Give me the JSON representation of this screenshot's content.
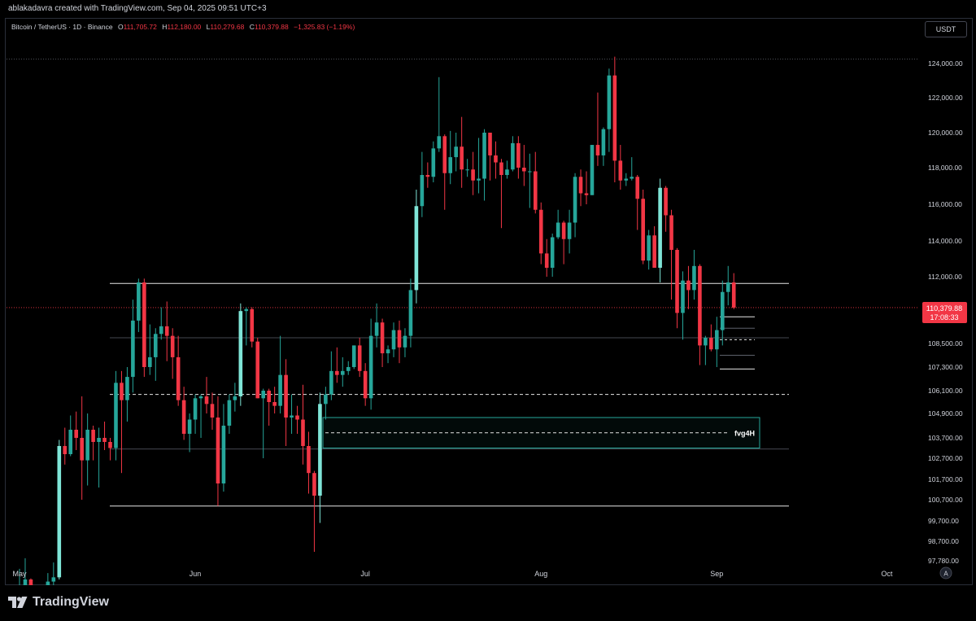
{
  "header": {
    "credit": "ablakadavra created with TradingView.com, Sep 04, 2025 09:51 UTC+3"
  },
  "legend": {
    "symbol": "Bitcoin / TetherUS · 1D · Binance",
    "open_label": "O",
    "open": "111,705.72",
    "high_label": "H",
    "high": "112,180.00",
    "low_label": "L",
    "low": "110,279.68",
    "close_label": "C",
    "close": "110,379.88",
    "change": "−1,325.83 (−1.19%)"
  },
  "currency_button": "USDT",
  "auto_button": "A",
  "logo": "TradingView",
  "price_tag": {
    "price": "110,379.88",
    "countdown": "17:08:33"
  },
  "colors": {
    "up": "#26a69a",
    "up_bright": "#7fe5d7",
    "down": "#f23645",
    "background": "#000000",
    "axis_text": "#d1d4dc",
    "line": "#e6e6e6",
    "zone": "#26a69a"
  },
  "chart_data": {
    "type": "candlestick",
    "x_axis_labels": [
      "May",
      "Jun",
      "Jul",
      "Aug",
      "Sep",
      "Oct"
    ],
    "y_axis_labels": [
      "124,000.00",
      "122,000.00",
      "120,000.00",
      "118,000.00",
      "116,000.00",
      "114,000.00",
      "112,000.00",
      "108,500.00",
      "107,300.00",
      "106,100.00",
      "104,900.00",
      "103,700.00",
      "102,700.00",
      "101,700.00",
      "100,700.00",
      "99,700.00",
      "98,700.00",
      "97,780.00"
    ],
    "last_price": 110379.88,
    "annotations": [
      {
        "type": "hline",
        "price": 111650
      },
      {
        "type": "hline",
        "price": 100400
      },
      {
        "type": "hline",
        "price": 108800,
        "style": "thin"
      },
      {
        "type": "hline",
        "price": 103150,
        "style": "thin"
      },
      {
        "type": "hline",
        "price": 105900,
        "style": "dashed"
      },
      {
        "type": "zone",
        "label": "fvg4H",
        "top": 104700,
        "bottom": 103200,
        "mid": 103950
      },
      {
        "type": "hline",
        "price": 124250,
        "style": "dotted"
      }
    ],
    "candles": [
      {
        "date": "2025-05-01",
        "o": 94200,
        "h": 97400,
        "l": 94000,
        "c": 96500
      },
      {
        "date": "2025-05-02",
        "o": 96500,
        "h": 97900,
        "l": 96300,
        "c": 96900
      },
      {
        "date": "2025-05-03",
        "o": 96900,
        "h": 96950,
        "l": 95800,
        "c": 95900
      },
      {
        "date": "2025-05-04",
        "o": 95900,
        "h": 96300,
        "l": 94100,
        "c": 94300
      },
      {
        "date": "2025-05-05",
        "o": 94300,
        "h": 95300,
        "l": 93500,
        "c": 94700
      },
      {
        "date": "2025-05-06",
        "o": 94700,
        "h": 97200,
        "l": 93700,
        "c": 96800
      },
      {
        "date": "2025-05-07",
        "o": 96800,
        "h": 97700,
        "l": 95800,
        "c": 97000
      },
      {
        "date": "2025-05-08",
        "o": 97000,
        "h": 103600,
        "l": 96900,
        "c": 103300
      },
      {
        "date": "2025-05-09",
        "o": 103300,
        "h": 104200,
        "l": 102400,
        "c": 102900
      },
      {
        "date": "2025-05-10",
        "o": 102900,
        "h": 104800,
        "l": 102800,
        "c": 104100
      },
      {
        "date": "2025-05-11",
        "o": 104100,
        "h": 105000,
        "l": 103100,
        "c": 103700
      },
      {
        "date": "2025-05-12",
        "o": 103700,
        "h": 105800,
        "l": 100700,
        "c": 102600
      },
      {
        "date": "2025-05-13",
        "o": 102600,
        "h": 104900,
        "l": 101400,
        "c": 104100
      },
      {
        "date": "2025-05-14",
        "o": 104100,
        "h": 104300,
        "l": 102600,
        "c": 103500
      },
      {
        "date": "2025-05-15",
        "o": 103500,
        "h": 104200,
        "l": 101300,
        "c": 103700
      },
      {
        "date": "2025-05-16",
        "o": 103700,
        "h": 104500,
        "l": 103100,
        "c": 103500
      },
      {
        "date": "2025-05-17",
        "o": 103500,
        "h": 103700,
        "l": 102600,
        "c": 103200
      },
      {
        "date": "2025-05-18",
        "o": 103200,
        "h": 107100,
        "l": 102600,
        "c": 106500
      },
      {
        "date": "2025-05-19",
        "o": 106500,
        "h": 107100,
        "l": 102000,
        "c": 105600
      },
      {
        "date": "2025-05-20",
        "o": 105600,
        "h": 107300,
        "l": 104500,
        "c": 106800
      },
      {
        "date": "2025-05-21",
        "o": 106800,
        "h": 110800,
        "l": 106000,
        "c": 109700
      },
      {
        "date": "2025-05-22",
        "o": 109700,
        "h": 111900,
        "l": 109100,
        "c": 111700
      },
      {
        "date": "2025-05-23",
        "o": 111700,
        "h": 111900,
        "l": 106800,
        "c": 107300
      },
      {
        "date": "2025-05-24",
        "o": 107300,
        "h": 109500,
        "l": 106900,
        "c": 107800
      },
      {
        "date": "2025-05-25",
        "o": 107800,
        "h": 109300,
        "l": 106600,
        "c": 109000
      },
      {
        "date": "2025-05-26",
        "o": 109000,
        "h": 110400,
        "l": 108700,
        "c": 109400
      },
      {
        "date": "2025-05-27",
        "o": 109400,
        "h": 110700,
        "l": 107600,
        "c": 108900
      },
      {
        "date": "2025-05-28",
        "o": 108900,
        "h": 109300,
        "l": 106700,
        "c": 107800
      },
      {
        "date": "2025-05-29",
        "o": 107800,
        "h": 108900,
        "l": 105300,
        "c": 105600
      },
      {
        "date": "2025-05-30",
        "o": 105600,
        "h": 106300,
        "l": 103600,
        "c": 103900
      },
      {
        "date": "2025-05-31",
        "o": 103900,
        "h": 104900,
        "l": 103000,
        "c": 104600
      },
      {
        "date": "2025-06-01",
        "o": 104600,
        "h": 105900,
        "l": 103900,
        "c": 105700
      },
      {
        "date": "2025-06-02",
        "o": 105700,
        "h": 105900,
        "l": 103700,
        "c": 105800
      },
      {
        "date": "2025-06-03",
        "o": 105800,
        "h": 106800,
        "l": 104900,
        "c": 105400
      },
      {
        "date": "2025-06-04",
        "o": 105400,
        "h": 106000,
        "l": 104100,
        "c": 104700
      },
      {
        "date": "2025-06-05",
        "o": 104700,
        "h": 105800,
        "l": 100400,
        "c": 101500
      },
      {
        "date": "2025-06-06",
        "o": 101500,
        "h": 105400,
        "l": 101100,
        "c": 104300
      },
      {
        "date": "2025-06-07",
        "o": 104300,
        "h": 105900,
        "l": 103900,
        "c": 105600
      },
      {
        "date": "2025-06-08",
        "o": 105600,
        "h": 106500,
        "l": 105000,
        "c": 105800
      },
      {
        "date": "2025-06-09",
        "o": 105800,
        "h": 110600,
        "l": 105300,
        "c": 110200
      },
      {
        "date": "2025-06-10",
        "o": 110200,
        "h": 110400,
        "l": 108400,
        "c": 110300
      },
      {
        "date": "2025-06-11",
        "o": 110300,
        "h": 110400,
        "l": 108300,
        "c": 108600
      },
      {
        "date": "2025-06-12",
        "o": 108600,
        "h": 108800,
        "l": 105700,
        "c": 105700
      },
      {
        "date": "2025-06-13",
        "o": 105700,
        "h": 106200,
        "l": 102700,
        "c": 106100
      },
      {
        "date": "2025-06-14",
        "o": 106100,
        "h": 106200,
        "l": 104300,
        "c": 105500
      },
      {
        "date": "2025-06-15",
        "o": 105500,
        "h": 106300,
        "l": 104900,
        "c": 105300
      },
      {
        "date": "2025-06-16",
        "o": 105300,
        "h": 108900,
        "l": 104900,
        "c": 106900
      },
      {
        "date": "2025-06-17",
        "o": 106900,
        "h": 107700,
        "l": 103300,
        "c": 104700
      },
      {
        "date": "2025-06-18",
        "o": 104700,
        "h": 105900,
        "l": 103900,
        "c": 104800
      },
      {
        "date": "2025-06-19",
        "o": 104800,
        "h": 105300,
        "l": 103900,
        "c": 104600
      },
      {
        "date": "2025-06-20",
        "o": 104600,
        "h": 106400,
        "l": 102400,
        "c": 103300
      },
      {
        "date": "2025-06-21",
        "o": 103300,
        "h": 104000,
        "l": 101000,
        "c": 102000
      },
      {
        "date": "2025-06-22",
        "o": 102000,
        "h": 102100,
        "l": 98200,
        "c": 100900
      },
      {
        "date": "2025-06-23",
        "o": 100900,
        "h": 106000,
        "l": 99600,
        "c": 105400
      },
      {
        "date": "2025-06-24",
        "o": 105400,
        "h": 106300,
        "l": 104600,
        "c": 105900
      },
      {
        "date": "2025-06-25",
        "o": 105900,
        "h": 108100,
        "l": 105600,
        "c": 107100
      },
      {
        "date": "2025-06-26",
        "o": 107100,
        "h": 108300,
        "l": 106500,
        "c": 106900
      },
      {
        "date": "2025-06-27",
        "o": 106900,
        "h": 107800,
        "l": 106300,
        "c": 107100
      },
      {
        "date": "2025-06-28",
        "o": 107100,
        "h": 107600,
        "l": 106900,
        "c": 107300
      },
      {
        "date": "2025-06-29",
        "o": 107300,
        "h": 108400,
        "l": 107200,
        "c": 108400
      },
      {
        "date": "2025-06-30",
        "o": 108400,
        "h": 108800,
        "l": 106800,
        "c": 107100
      },
      {
        "date": "2025-07-01",
        "o": 107100,
        "h": 107500,
        "l": 105300,
        "c": 105700
      },
      {
        "date": "2025-07-02",
        "o": 105700,
        "h": 109800,
        "l": 105100,
        "c": 108900
      },
      {
        "date": "2025-07-03",
        "o": 108900,
        "h": 110600,
        "l": 108300,
        "c": 109600
      },
      {
        "date": "2025-07-04",
        "o": 109600,
        "h": 109800,
        "l": 107300,
        "c": 108000
      },
      {
        "date": "2025-07-05",
        "o": 108000,
        "h": 108400,
        "l": 107500,
        "c": 108200
      },
      {
        "date": "2025-07-06",
        "o": 108200,
        "h": 109600,
        "l": 107800,
        "c": 109200
      },
      {
        "date": "2025-07-07",
        "o": 109200,
        "h": 109700,
        "l": 107500,
        "c": 108300
      },
      {
        "date": "2025-07-08",
        "o": 108300,
        "h": 109300,
        "l": 107800,
        "c": 108900
      },
      {
        "date": "2025-07-09",
        "o": 108900,
        "h": 111900,
        "l": 108300,
        "c": 111300
      },
      {
        "date": "2025-07-10",
        "o": 111300,
        "h": 116800,
        "l": 110600,
        "c": 115900
      },
      {
        "date": "2025-07-11",
        "o": 115900,
        "h": 118900,
        "l": 115300,
        "c": 117600
      },
      {
        "date": "2025-07-12",
        "o": 117600,
        "h": 118300,
        "l": 116900,
        "c": 117500
      },
      {
        "date": "2025-07-13",
        "o": 117500,
        "h": 119500,
        "l": 117200,
        "c": 119100
      },
      {
        "date": "2025-07-14",
        "o": 119100,
        "h": 123200,
        "l": 118900,
        "c": 119800
      },
      {
        "date": "2025-07-15",
        "o": 119800,
        "h": 119900,
        "l": 115700,
        "c": 117700
      },
      {
        "date": "2025-07-16",
        "o": 117700,
        "h": 120100,
        "l": 117100,
        "c": 118600
      },
      {
        "date": "2025-07-17",
        "o": 118600,
        "h": 120000,
        "l": 117800,
        "c": 119200
      },
      {
        "date": "2025-07-18",
        "o": 119200,
        "h": 120900,
        "l": 116900,
        "c": 117900
      },
      {
        "date": "2025-07-19",
        "o": 117900,
        "h": 118500,
        "l": 117500,
        "c": 117900
      },
      {
        "date": "2025-07-20",
        "o": 117900,
        "h": 118900,
        "l": 116500,
        "c": 117300
      },
      {
        "date": "2025-07-21",
        "o": 117300,
        "h": 119700,
        "l": 116600,
        "c": 117400
      },
      {
        "date": "2025-07-22",
        "o": 117400,
        "h": 120200,
        "l": 116200,
        "c": 120000
      },
      {
        "date": "2025-07-23",
        "o": 120000,
        "h": 120000,
        "l": 117300,
        "c": 118700
      },
      {
        "date": "2025-07-24",
        "o": 118700,
        "h": 119500,
        "l": 117400,
        "c": 118300
      },
      {
        "date": "2025-07-25",
        "o": 118300,
        "h": 118500,
        "l": 114700,
        "c": 117600
      },
      {
        "date": "2025-07-26",
        "o": 117600,
        "h": 118400,
        "l": 117400,
        "c": 117900
      },
      {
        "date": "2025-07-27",
        "o": 117900,
        "h": 119800,
        "l": 117800,
        "c": 119400
      },
      {
        "date": "2025-07-28",
        "o": 119400,
        "h": 119800,
        "l": 117400,
        "c": 118000
      },
      {
        "date": "2025-07-29",
        "o": 118000,
        "h": 119300,
        "l": 117000,
        "c": 117800
      },
      {
        "date": "2025-07-30",
        "o": 117800,
        "h": 118800,
        "l": 115800,
        "c": 117800
      },
      {
        "date": "2025-07-31",
        "o": 117800,
        "h": 118900,
        "l": 115500,
        "c": 115700
      },
      {
        "date": "2025-08-01",
        "o": 115700,
        "h": 116100,
        "l": 112700,
        "c": 113300
      },
      {
        "date": "2025-08-02",
        "o": 113300,
        "h": 114100,
        "l": 112000,
        "c": 112500
      },
      {
        "date": "2025-08-03",
        "o": 112500,
        "h": 114400,
        "l": 112000,
        "c": 114200
      },
      {
        "date": "2025-08-04",
        "o": 114200,
        "h": 115700,
        "l": 114100,
        "c": 115000
      },
      {
        "date": "2025-08-05",
        "o": 115000,
        "h": 115100,
        "l": 112700,
        "c": 114100
      },
      {
        "date": "2025-08-06",
        "o": 114100,
        "h": 115700,
        "l": 113300,
        "c": 115000
      },
      {
        "date": "2025-08-07",
        "o": 115000,
        "h": 117700,
        "l": 114200,
        "c": 117500
      },
      {
        "date": "2025-08-08",
        "o": 117500,
        "h": 117900,
        "l": 115900,
        "c": 116600
      },
      {
        "date": "2025-08-09",
        "o": 116600,
        "h": 117800,
        "l": 116000,
        "c": 116500
      },
      {
        "date": "2025-08-10",
        "o": 116500,
        "h": 119300,
        "l": 116500,
        "c": 119300
      },
      {
        "date": "2025-08-11",
        "o": 119300,
        "h": 122300,
        "l": 118100,
        "c": 118700
      },
      {
        "date": "2025-08-12",
        "o": 118700,
        "h": 120300,
        "l": 118100,
        "c": 120200
      },
      {
        "date": "2025-08-13",
        "o": 120200,
        "h": 123700,
        "l": 118900,
        "c": 123300
      },
      {
        "date": "2025-08-14",
        "o": 123300,
        "h": 124400,
        "l": 117200,
        "c": 118400
      },
      {
        "date": "2025-08-15",
        "o": 118400,
        "h": 119300,
        "l": 116800,
        "c": 117300
      },
      {
        "date": "2025-08-16",
        "o": 117300,
        "h": 117700,
        "l": 117000,
        "c": 117400
      },
      {
        "date": "2025-08-17",
        "o": 117400,
        "h": 118600,
        "l": 117300,
        "c": 117500
      },
      {
        "date": "2025-08-18",
        "o": 117500,
        "h": 117600,
        "l": 114600,
        "c": 116300
      },
      {
        "date": "2025-08-19",
        "o": 116300,
        "h": 116800,
        "l": 112700,
        "c": 112900
      },
      {
        "date": "2025-08-20",
        "o": 112900,
        "h": 114600,
        "l": 112400,
        "c": 114300
      },
      {
        "date": "2025-08-21",
        "o": 114300,
        "h": 114800,
        "l": 112600,
        "c": 112500
      },
      {
        "date": "2025-08-22",
        "o": 112500,
        "h": 117400,
        "l": 111700,
        "c": 116900
      },
      {
        "date": "2025-08-23",
        "o": 116900,
        "h": 117000,
        "l": 114500,
        "c": 115400
      },
      {
        "date": "2025-08-24",
        "o": 115400,
        "h": 115700,
        "l": 110800,
        "c": 113500
      },
      {
        "date": "2025-08-25",
        "o": 113500,
        "h": 113600,
        "l": 109300,
        "c": 110100
      },
      {
        "date": "2025-08-26",
        "o": 110100,
        "h": 112300,
        "l": 108700,
        "c": 111800
      },
      {
        "date": "2025-08-27",
        "o": 111800,
        "h": 112600,
        "l": 110300,
        "c": 111300
      },
      {
        "date": "2025-08-28",
        "o": 111300,
        "h": 113500,
        "l": 110800,
        "c": 112600
      },
      {
        "date": "2025-08-29",
        "o": 112600,
        "h": 112700,
        "l": 107400,
        "c": 108400
      },
      {
        "date": "2025-08-30",
        "o": 108400,
        "h": 108900,
        "l": 107400,
        "c": 108800
      },
      {
        "date": "2025-08-31",
        "o": 108800,
        "h": 109500,
        "l": 108100,
        "c": 108200
      },
      {
        "date": "2025-09-01",
        "o": 108200,
        "h": 109900,
        "l": 107300,
        "c": 109200
      },
      {
        "date": "2025-09-02",
        "o": 109200,
        "h": 111800,
        "l": 108400,
        "c": 111200
      },
      {
        "date": "2025-09-03",
        "o": 111200,
        "h": 112600,
        "l": 110500,
        "c": 111700
      },
      {
        "date": "2025-09-04",
        "o": 111700,
        "h": 112200,
        "l": 110300,
        "c": 110380
      }
    ]
  }
}
